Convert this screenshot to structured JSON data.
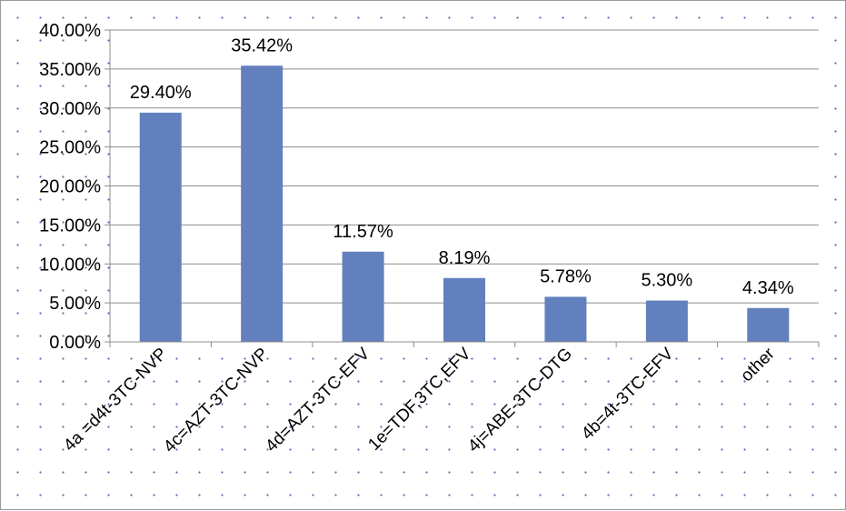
{
  "chart_data": {
    "type": "bar",
    "categories": [
      "4a =d4t-3TC-NVP",
      "4c=AZT-3TC-NVP",
      "4d=AZT-3TC-EFV",
      "1e=TDF,3TC,EFV",
      "4j=ABE-3TC-DTG",
      "4b=4t-3TC-EFV",
      "other"
    ],
    "values": [
      29.4,
      35.42,
      11.57,
      8.19,
      5.78,
      5.3,
      4.34
    ],
    "data_labels": [
      "29.40%",
      "35.42%",
      "11.57%",
      "8.19%",
      "5.78%",
      "5.30%",
      "4.34%"
    ],
    "y_ticks": [
      0,
      5,
      10,
      15,
      20,
      25,
      30,
      35,
      40
    ],
    "y_tick_labels": [
      "0.00%",
      "5.00%",
      "10.00%",
      "15.00%",
      "20.00%",
      "25.00%",
      "30.00%",
      "35.00%",
      "40.00%"
    ],
    "ylim": [
      0,
      40
    ],
    "grid": true,
    "legend": "none",
    "bar_color": "#6280bd",
    "grid_color": "#8c8c8c",
    "background": "dotted"
  }
}
